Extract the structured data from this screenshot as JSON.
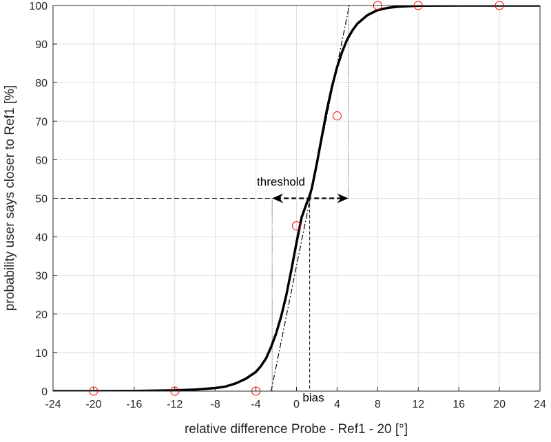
{
  "chart_data": {
    "type": "line",
    "title": "",
    "xlabel": "relative difference Probe - Ref1 - 20 [°]",
    "ylabel": "probability user says closer to Ref1 [%]",
    "xlim": [
      -24,
      24
    ],
    "ylim": [
      0,
      100
    ],
    "xticks": [
      -24,
      -20,
      -16,
      -12,
      -8,
      -4,
      0,
      4,
      8,
      12,
      16,
      20,
      24
    ],
    "xtick_labels": [
      "-24",
      "-20",
      "-16",
      "-12",
      "-8",
      "-4",
      "0",
      "4",
      "8",
      "12",
      "16",
      "20",
      "24"
    ],
    "yticks": [
      0,
      10,
      20,
      30,
      40,
      50,
      60,
      70,
      80,
      90,
      100
    ],
    "ytick_labels": [
      "0",
      "10",
      "20",
      "30",
      "40",
      "50",
      "60",
      "70",
      "80",
      "90",
      "100"
    ],
    "grid": true,
    "series": [
      {
        "kind": "fitted-curve",
        "style": "solid-thick",
        "color": "#000000",
        "x": [
          -24,
          -20,
          -16,
          -12,
          -10,
          -8,
          -7,
          -6,
          -5,
          -4,
          -3.5,
          -3,
          -2.5,
          -2,
          -1.5,
          -1,
          -0.5,
          0,
          0.5,
          1,
          1.2,
          1.5,
          2,
          2.5,
          3,
          3.5,
          4,
          4.5,
          5,
          5.5,
          6,
          7,
          8,
          9,
          10,
          12,
          16,
          20,
          24
        ],
        "y": [
          0,
          0,
          0.05,
          0.2,
          0.4,
          0.8,
          1.2,
          2,
          3.2,
          5,
          6.5,
          8.5,
          11.5,
          15,
          19.5,
          25,
          31.5,
          38.5,
          45,
          48.7,
          50,
          52.5,
          59,
          66,
          73,
          79,
          84,
          88,
          91.2,
          93.5,
          95.3,
          97.5,
          98.8,
          99.4,
          99.7,
          99.95,
          100,
          100,
          100
        ]
      },
      {
        "kind": "observed-data",
        "style": "circle-markers",
        "color": "#ff0000",
        "x": [
          -20,
          -12,
          -4,
          0,
          4,
          8,
          12,
          20
        ],
        "y": [
          0,
          0,
          0,
          42.9,
          71.4,
          100,
          100,
          100
        ]
      }
    ],
    "slope_line": {
      "x": [
        -2.5,
        5.2
      ],
      "y": [
        0,
        100
      ],
      "style": "dash-dot",
      "color": "#000000"
    },
    "threshold": {
      "label": "threshold",
      "x_low": -2.4,
      "x_high": 5.1,
      "y": 50
    },
    "bias": {
      "label": "bias",
      "x": 1.3
    }
  }
}
